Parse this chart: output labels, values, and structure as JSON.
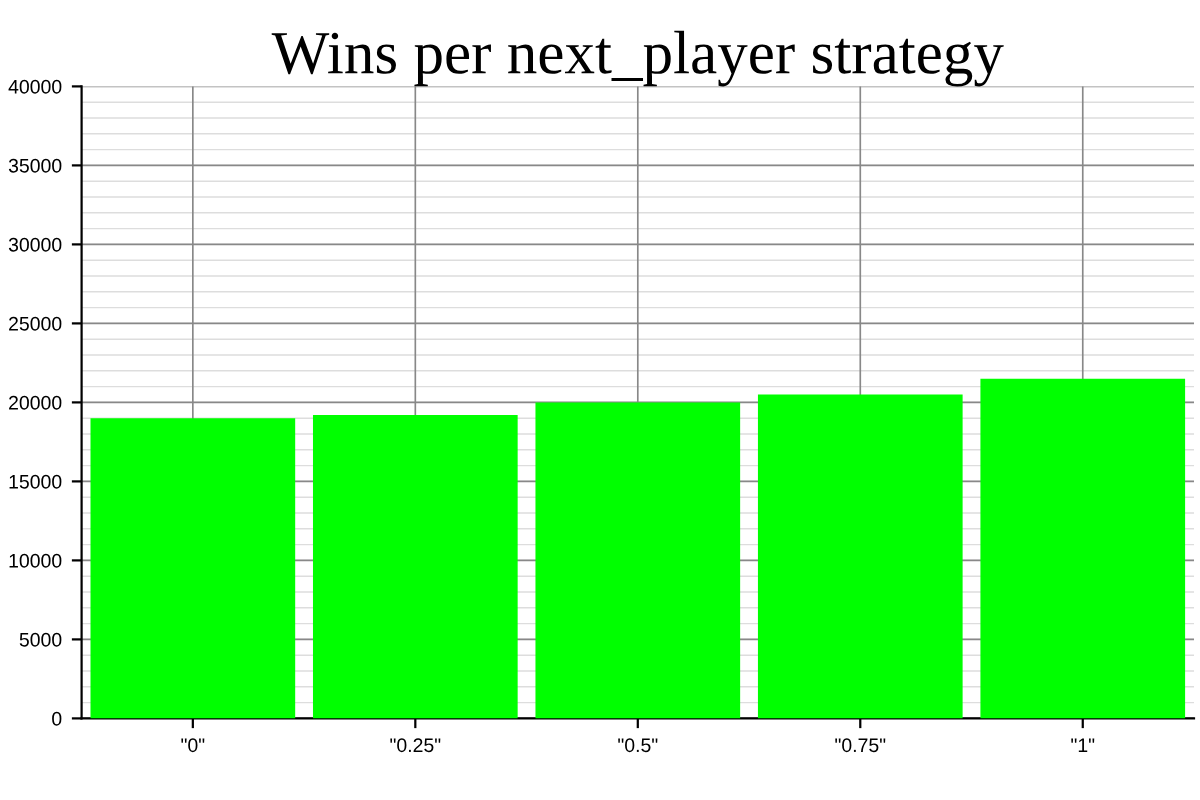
{
  "chart_data": {
    "type": "bar",
    "title": "Wins per next_player strategy",
    "categories": [
      "\"0\"",
      "\"0.25\"",
      "\"0.5\"",
      "\"0.75\"",
      "\"1\""
    ],
    "values": [
      19000,
      19200,
      20000,
      20500,
      21500
    ],
    "color": "#00ff00",
    "ylim": [
      0,
      40000
    ],
    "yticks": [
      0,
      5000,
      10000,
      15000,
      20000,
      25000,
      30000,
      35000,
      40000
    ],
    "grid": true
  }
}
